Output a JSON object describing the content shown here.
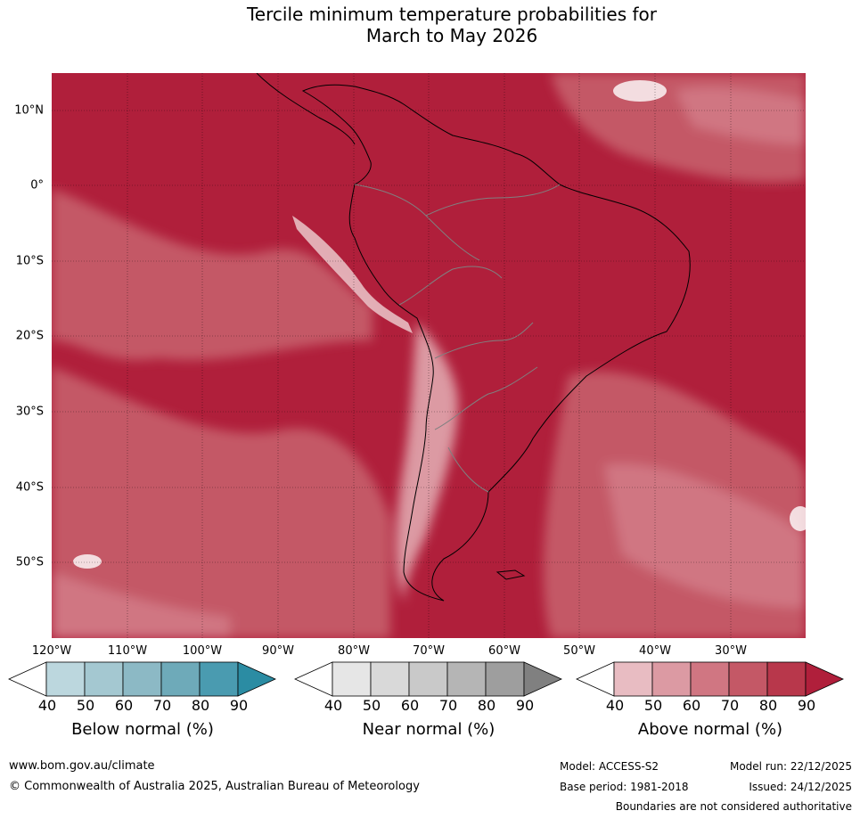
{
  "title": {
    "line1": "Tercile minimum temperature probabilities for",
    "line2": "March to May 2026"
  },
  "map": {
    "lat_labels": [
      "10°N",
      "0°",
      "10°S",
      "20°S",
      "30°S",
      "40°S",
      "50°S"
    ],
    "lon_labels": [
      "120°W",
      "110°W",
      "100°W",
      "90°W",
      "80°W",
      "70°W",
      "60°W",
      "50°W",
      "40°W",
      "30°W"
    ]
  },
  "legends": {
    "below": {
      "title": "Below normal (%)",
      "ticks": [
        "40",
        "50",
        "60",
        "70",
        "80",
        "90"
      ],
      "colors": [
        "#ffffff",
        "#bcd7de",
        "#a4c8d1",
        "#8cb9c5",
        "#6eaab9",
        "#4a9bb0",
        "#2b8ca3"
      ]
    },
    "near": {
      "title": "Near normal (%)",
      "ticks": [
        "40",
        "50",
        "60",
        "70",
        "80",
        "90"
      ],
      "colors": [
        "#ffffff",
        "#e6e6e6",
        "#d9d9d9",
        "#c9c9c9",
        "#b5b5b5",
        "#9e9e9e",
        "#808080"
      ]
    },
    "above": {
      "title": "Above normal (%)",
      "ticks": [
        "40",
        "50",
        "60",
        "70",
        "80",
        "90"
      ],
      "colors": [
        "#ffffff",
        "#e8bcc2",
        "#dc9aa3",
        "#d07682",
        "#c45866",
        "#b8374b",
        "#b01f3b"
      ]
    }
  },
  "footer": {
    "website": "www.bom.gov.au/climate",
    "copyright": "© Commonwealth of Australia 2025, Australian Bureau of Meteorology",
    "model": "Model: ACCESS-S2",
    "model_run": "Model run: 22/12/2025",
    "base_period": "Base period: 1981-2018",
    "issued": "Issued: 24/12/2025",
    "disclaimer": "Boundaries are not considered authoritative"
  }
}
